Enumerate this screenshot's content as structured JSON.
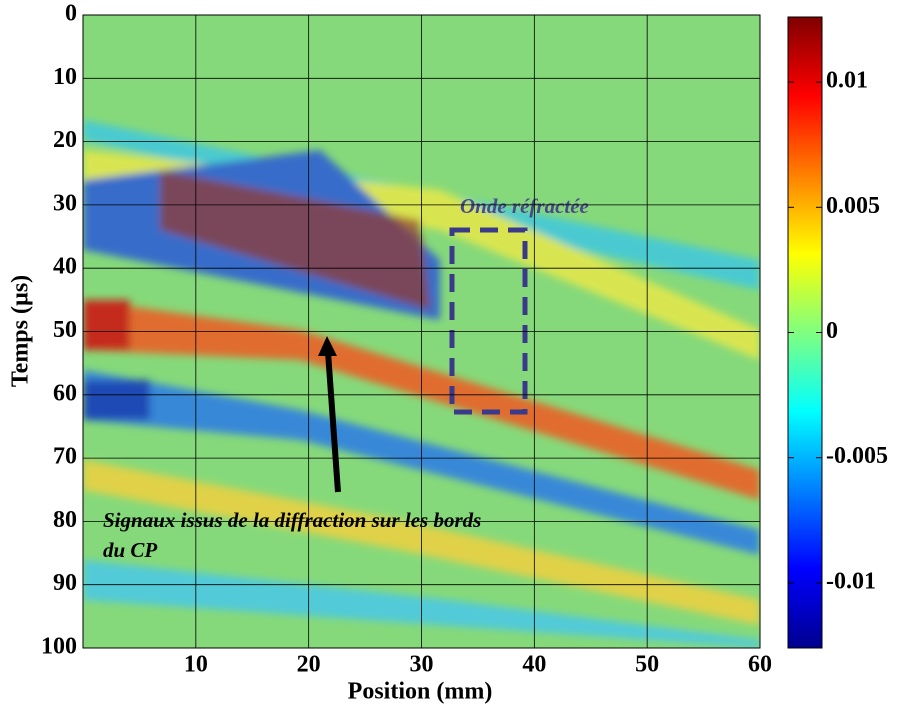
{
  "chart_data": {
    "type": "heatmap",
    "xlabel": "Position (mm)",
    "ylabel": "Temps (µs)",
    "xlim": [
      0,
      60
    ],
    "xticks": [
      10,
      20,
      30,
      40,
      50,
      60
    ],
    "ylim": [
      0,
      100
    ],
    "yticks": [
      0,
      10,
      20,
      30,
      40,
      50,
      60,
      70,
      80,
      90,
      100
    ],
    "y_inverted": true,
    "grid": true,
    "colorbar": {
      "clim": [
        -0.0126,
        0.0126
      ],
      "ticks": [
        0.01,
        0.005,
        0,
        -0.005,
        -0.01
      ],
      "colormap": "jet"
    },
    "annotations": {
      "refracted": "Onde réfractée",
      "diffraction": [
        "Signaux issus de la diffraction sur les bords",
        "du CP"
      ]
    }
  }
}
